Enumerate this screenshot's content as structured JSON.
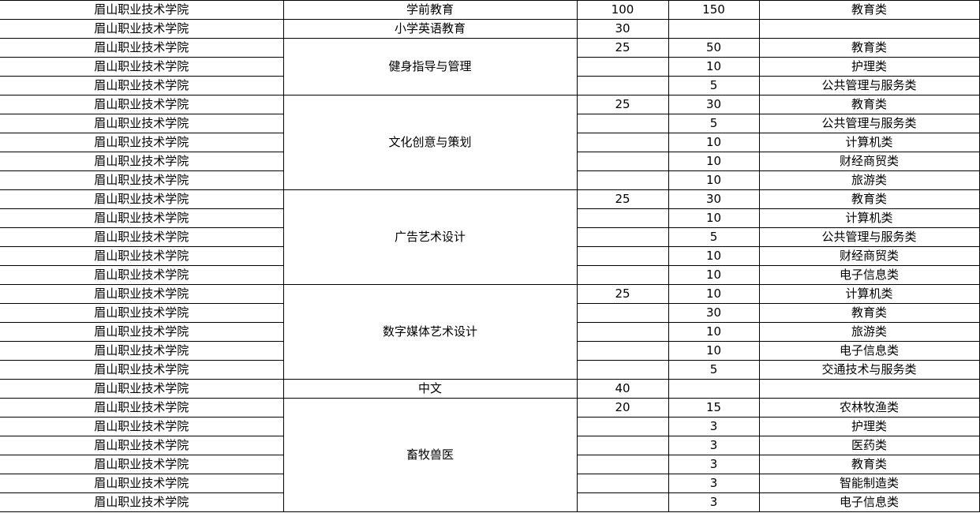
{
  "groups": [
    {
      "major": "学前教育",
      "rows": [
        {
          "school": "眉山职业技术学院",
          "plan": "100",
          "count": "150",
          "category": "教育类"
        }
      ]
    },
    {
      "major": "小学英语教育",
      "rows": [
        {
          "school": "眉山职业技术学院",
          "plan": "30",
          "count": "",
          "category": ""
        }
      ]
    },
    {
      "major": "健身指导与管理",
      "rows": [
        {
          "school": "眉山职业技术学院",
          "plan": "25",
          "count": "50",
          "category": "教育类"
        },
        {
          "school": "眉山职业技术学院",
          "plan": "",
          "count": "10",
          "category": "护理类"
        },
        {
          "school": "眉山职业技术学院",
          "plan": "",
          "count": "5",
          "category": "公共管理与服务类"
        }
      ]
    },
    {
      "major": "文化创意与策划",
      "rows": [
        {
          "school": "眉山职业技术学院",
          "plan": "25",
          "count": "30",
          "category": "教育类"
        },
        {
          "school": "眉山职业技术学院",
          "plan": "",
          "count": "5",
          "category": "公共管理与服务类"
        },
        {
          "school": "眉山职业技术学院",
          "plan": "",
          "count": "10",
          "category": "计算机类"
        },
        {
          "school": "眉山职业技术学院",
          "plan": "",
          "count": "10",
          "category": "财经商贸类"
        },
        {
          "school": "眉山职业技术学院",
          "plan": "",
          "count": "10",
          "category": "旅游类"
        }
      ]
    },
    {
      "major": "广告艺术设计",
      "rows": [
        {
          "school": "眉山职业技术学院",
          "plan": "25",
          "count": "30",
          "category": "教育类"
        },
        {
          "school": "眉山职业技术学院",
          "plan": "",
          "count": "10",
          "category": "计算机类"
        },
        {
          "school": "眉山职业技术学院",
          "plan": "",
          "count": "5",
          "category": "公共管理与服务类"
        },
        {
          "school": "眉山职业技术学院",
          "plan": "",
          "count": "10",
          "category": "财经商贸类"
        },
        {
          "school": "眉山职业技术学院",
          "plan": "",
          "count": "10",
          "category": "电子信息类"
        }
      ]
    },
    {
      "major": "数字媒体艺术设计",
      "rows": [
        {
          "school": "眉山职业技术学院",
          "plan": "25",
          "count": "10",
          "category": "计算机类"
        },
        {
          "school": "眉山职业技术学院",
          "plan": "",
          "count": "30",
          "category": "教育类"
        },
        {
          "school": "眉山职业技术学院",
          "plan": "",
          "count": "10",
          "category": "旅游类"
        },
        {
          "school": "眉山职业技术学院",
          "plan": "",
          "count": "10",
          "category": "电子信息类"
        },
        {
          "school": "眉山职业技术学院",
          "plan": "",
          "count": "5",
          "category": "交通技术与服务类"
        }
      ]
    },
    {
      "major": "中文",
      "rows": [
        {
          "school": "眉山职业技术学院",
          "plan": "40",
          "count": "",
          "category": ""
        }
      ]
    },
    {
      "major": "畜牧兽医",
      "rows": [
        {
          "school": "眉山职业技术学院",
          "plan": "20",
          "count": "15",
          "category": "农林牧渔类"
        },
        {
          "school": "眉山职业技术学院",
          "plan": "",
          "count": "3",
          "category": "护理类"
        },
        {
          "school": "眉山职业技术学院",
          "plan": "",
          "count": "3",
          "category": "医药类"
        },
        {
          "school": "眉山职业技术学院",
          "plan": "",
          "count": "3",
          "category": "教育类"
        },
        {
          "school": "眉山职业技术学院",
          "plan": "",
          "count": "3",
          "category": "智能制造类"
        },
        {
          "school": "眉山职业技术学院",
          "plan": "",
          "count": "3",
          "category": "电子信息类"
        }
      ]
    }
  ]
}
